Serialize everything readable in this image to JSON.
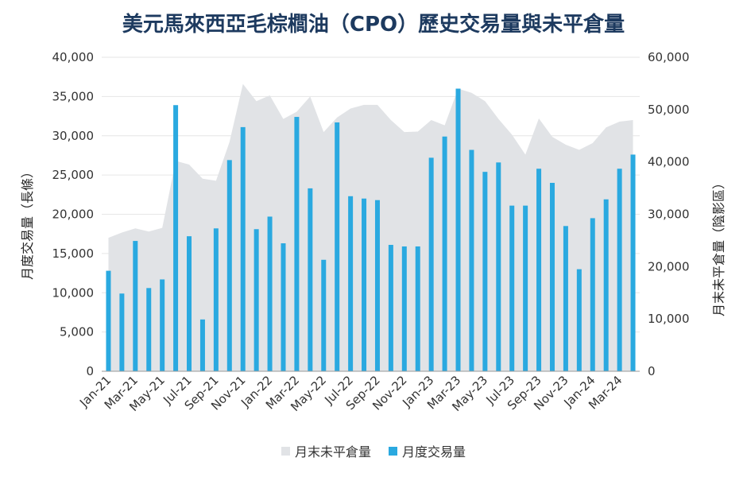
{
  "chart_data": {
    "type": "bar",
    "title": "美元馬來西亞毛棕櫚油（CPO）歷史交易量與未平倉量",
    "ylabel_left": "月度交易量（長條）",
    "ylabel_right": "月末未平倉量（陰影區）",
    "ylim_left": [
      0,
      40000
    ],
    "ylim_right": [
      0,
      60000
    ],
    "yticks_left": [
      "0",
      "5,000",
      "10,000",
      "15,000",
      "20,000",
      "25,000",
      "30,000",
      "35,000",
      "40,000"
    ],
    "yticks_right": [
      "0",
      "10,000",
      "20,000",
      "30,000",
      "40,000",
      "50,000",
      "60,000"
    ],
    "categories": [
      "Jan-21",
      "Feb-21",
      "Mar-21",
      "Apr-21",
      "May-21",
      "Jun-21",
      "Jul-21",
      "Aug-21",
      "Sep-21",
      "Oct-21",
      "Nov-21",
      "Dec-21",
      "Jan-22",
      "Feb-22",
      "Mar-22",
      "Apr-22",
      "May-22",
      "Jun-22",
      "Jul-22",
      "Aug-22",
      "Sep-22",
      "Oct-22",
      "Nov-22",
      "Dec-22",
      "Jan-23",
      "Feb-23",
      "Mar-23",
      "Apr-23",
      "May-23",
      "Jun-23",
      "Jul-23",
      "Aug-23",
      "Sep-23",
      "Oct-23",
      "Nov-23",
      "Dec-23",
      "Jan-24",
      "Feb-24",
      "Mar-24",
      "Apr-24"
    ],
    "x_tick_labels": [
      "Jan-21",
      "Mar-21",
      "May-21",
      "Jul-21",
      "Sep-21",
      "Nov-21",
      "Jan-22",
      "Mar-22",
      "May-22",
      "Jul-22",
      "Sep-22",
      "Nov-22",
      "Jan-23",
      "Mar-23",
      "May-23",
      "Jul-23",
      "Sep-23",
      "Nov-23",
      "Jan-24",
      "Mar-24"
    ],
    "legend_position": "bottom",
    "grid": true,
    "series": [
      {
        "name": "月末未平倉量",
        "type": "area",
        "axis": "right",
        "color": "#e1e3e6",
        "values": [
          25500,
          26500,
          27300,
          26700,
          27400,
          40200,
          39500,
          36800,
          36400,
          43800,
          54900,
          51600,
          52700,
          48200,
          49600,
          52500,
          45700,
          48500,
          50200,
          50900,
          50900,
          48000,
          45700,
          45800,
          48000,
          47000,
          54000,
          53200,
          51600,
          48200,
          45200,
          41400,
          48300,
          44800,
          43300,
          42300,
          43600,
          46600,
          47700,
          48000
        ]
      },
      {
        "name": "月度交易量",
        "type": "bar",
        "axis": "left",
        "color": "#2aa9e0",
        "values": [
          12800,
          9900,
          16600,
          10600,
          11700,
          33900,
          17200,
          6600,
          18200,
          26900,
          31100,
          18100,
          19700,
          16300,
          32400,
          23300,
          14200,
          31700,
          22300,
          22000,
          21800,
          16100,
          15900,
          15900,
          27200,
          29900,
          36000,
          28200,
          25400,
          26600,
          21100,
          21100,
          25800,
          24000,
          18500,
          13000,
          19500,
          21900,
          25800,
          27600
        ]
      }
    ]
  }
}
